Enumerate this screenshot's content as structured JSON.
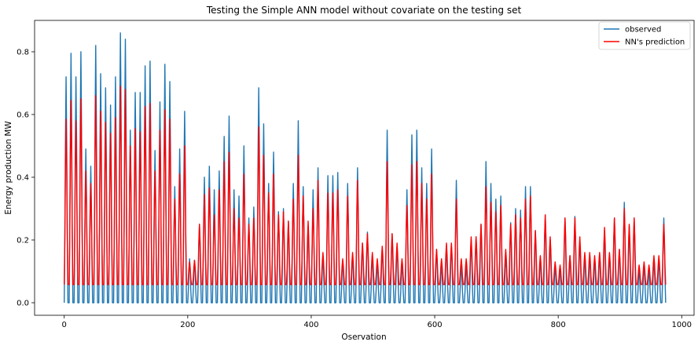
{
  "chart_data": {
    "type": "line",
    "title": "Testing the Simple ANN model without covariate on the testing set",
    "xlabel": "Oservation",
    "ylabel": "Energy production MW",
    "xlim": [
      -48,
      1020
    ],
    "ylim": [
      -0.04,
      0.9
    ],
    "x_ticks": [
      0,
      200,
      400,
      600,
      800,
      1000
    ],
    "x_tick_labels": [
      "0",
      "200",
      "400",
      "600",
      "800",
      "1000"
    ],
    "y_ticks": [
      0.0,
      0.2,
      0.4,
      0.6,
      0.8
    ],
    "y_tick_labels": [
      "0.0",
      "0.2",
      "0.4",
      "0.6",
      "0.8"
    ],
    "grid": false,
    "legend_position": "top-right",
    "period": 8,
    "n_points": 975,
    "peaks_observed": [
      0.72,
      0.795,
      0.72,
      0.8,
      0.49,
      0.435,
      0.82,
      0.73,
      0.685,
      0.63,
      0.72,
      0.86,
      0.84,
      0.55,
      0.67,
      0.67,
      0.755,
      0.77,
      0.485,
      0.64,
      0.76,
      0.705,
      0.37,
      0.49,
      0.61,
      0.14,
      0.135,
      0.25,
      0.4,
      0.435,
      0.36,
      0.42,
      0.53,
      0.595,
      0.36,
      0.34,
      0.5,
      0.27,
      0.305,
      0.685,
      0.57,
      0.38,
      0.48,
      0.29,
      0.3,
      0.26,
      0.38,
      0.58,
      0.37,
      0.245,
      0.36,
      0.43,
      0.15,
      0.405,
      0.405,
      0.415,
      0.135,
      0.38,
      0.15,
      0.43,
      0.19,
      0.225,
      0.15,
      0.13,
      0.175,
      0.55,
      0.22,
      0.18,
      0.125,
      0.36,
      0.535,
      0.55,
      0.43,
      0.38,
      0.49,
      0.17,
      0.125,
      0.18,
      0.185,
      0.39,
      0.12,
      0.12,
      0.2,
      0.21,
      0.25,
      0.45,
      0.38,
      0.33,
      0.34,
      0.155,
      0.255,
      0.3,
      0.295,
      0.37,
      0.37,
      0.23,
      0.14,
      0.28,
      0.2,
      0.12,
      0.11,
      0.27,
      0.15,
      0.275,
      0.2,
      0.15,
      0.15,
      0.14,
      0.155,
      0.23,
      0.155,
      0.27,
      0.17,
      0.32,
      0.245,
      0.27,
      0.105,
      0.12,
      0.105,
      0.14,
      0.14,
      0.27,
      0.11,
      0.265
    ],
    "peaks_predicted": [
      0.585,
      0.645,
      0.58,
      0.65,
      0.42,
      0.38,
      0.66,
      0.61,
      0.575,
      0.54,
      0.59,
      0.69,
      0.68,
      0.5,
      0.555,
      0.545,
      0.625,
      0.635,
      0.42,
      0.55,
      0.615,
      0.585,
      0.33,
      0.41,
      0.5,
      0.13,
      0.135,
      0.25,
      0.345,
      0.365,
      0.28,
      0.36,
      0.45,
      0.48,
      0.3,
      0.27,
      0.41,
      0.25,
      0.27,
      0.56,
      0.47,
      0.35,
      0.41,
      0.28,
      0.29,
      0.26,
      0.33,
      0.47,
      0.34,
      0.26,
      0.3,
      0.39,
      0.16,
      0.35,
      0.35,
      0.36,
      0.14,
      0.34,
      0.16,
      0.39,
      0.19,
      0.22,
      0.16,
      0.14,
      0.18,
      0.45,
      0.22,
      0.19,
      0.14,
      0.31,
      0.44,
      0.45,
      0.38,
      0.33,
      0.41,
      0.17,
      0.14,
      0.19,
      0.19,
      0.33,
      0.14,
      0.14,
      0.21,
      0.21,
      0.25,
      0.37,
      0.32,
      0.29,
      0.31,
      0.17,
      0.25,
      0.28,
      0.27,
      0.33,
      0.34,
      0.23,
      0.15,
      0.28,
      0.21,
      0.13,
      0.12,
      0.27,
      0.15,
      0.27,
      0.21,
      0.16,
      0.16,
      0.15,
      0.16,
      0.24,
      0.16,
      0.27,
      0.17,
      0.3,
      0.25,
      0.27,
      0.12,
      0.13,
      0.12,
      0.15,
      0.15,
      0.25,
      0.12,
      0.25
    ],
    "observed_baseline": 0.0,
    "predicted_baseline": 0.058,
    "series": [
      {
        "name": "observed",
        "color": "#1f77b4"
      },
      {
        "name": "NN's prediction",
        "color": "#ff0000"
      }
    ]
  }
}
